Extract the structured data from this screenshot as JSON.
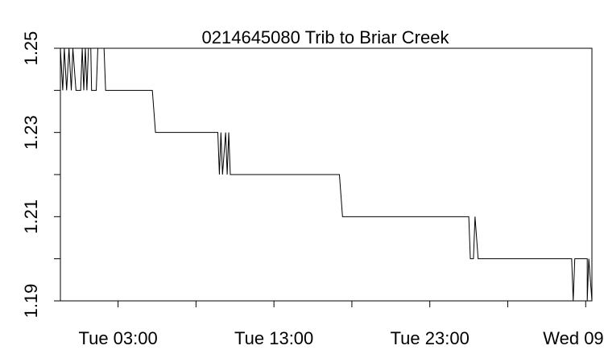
{
  "chart_data": {
    "type": "line",
    "title": "0214645080 Trib to Briar Creek",
    "xlabel": "",
    "ylabel": "",
    "ylim": [
      1.19,
      1.25
    ],
    "yticks": [
      1.19,
      1.2,
      1.21,
      1.22,
      1.23,
      1.24,
      1.25
    ],
    "ytick_labels": [
      "1.19",
      "",
      "1.21",
      "",
      "1.23",
      "",
      "1.25"
    ],
    "xlim": [
      -0.7,
      33.4
    ],
    "x_unit": "hours after Tue 00:00",
    "xticks": [
      3,
      8,
      13,
      18,
      23,
      28,
      33
    ],
    "xtick_labels": [
      "Tue 03:00",
      "",
      "Tue 13:00",
      "",
      "Tue 23:00",
      "",
      "Wed 09:00"
    ],
    "grid": false,
    "series": [
      {
        "color": "#000000",
        "points": [
          [
            -0.7,
            1.25
          ],
          [
            -0.55,
            1.24
          ],
          [
            -0.45,
            1.25
          ],
          [
            -0.3,
            1.24
          ],
          [
            -0.15,
            1.25
          ],
          [
            0.0,
            1.24
          ],
          [
            0.1,
            1.25
          ],
          [
            0.3,
            1.24
          ],
          [
            0.6,
            1.24
          ],
          [
            0.7,
            1.25
          ],
          [
            0.8,
            1.24
          ],
          [
            0.9,
            1.25
          ],
          [
            1.0,
            1.24
          ],
          [
            1.1,
            1.25
          ],
          [
            1.25,
            1.25
          ],
          [
            1.3,
            1.24
          ],
          [
            1.6,
            1.24
          ],
          [
            1.7,
            1.25
          ],
          [
            2.1,
            1.25
          ],
          [
            2.2,
            1.24
          ],
          [
            5.2,
            1.24
          ],
          [
            5.4,
            1.23
          ],
          [
            9.4,
            1.23
          ],
          [
            9.5,
            1.22
          ],
          [
            9.6,
            1.23
          ],
          [
            9.7,
            1.22
          ],
          [
            9.9,
            1.23
          ],
          [
            10.0,
            1.22
          ],
          [
            10.1,
            1.23
          ],
          [
            10.2,
            1.22
          ],
          [
            17.2,
            1.22
          ],
          [
            17.4,
            1.21
          ],
          [
            25.5,
            1.21
          ],
          [
            25.6,
            1.2
          ],
          [
            25.8,
            1.2
          ],
          [
            25.9,
            1.21
          ],
          [
            26.1,
            1.2
          ],
          [
            32.1,
            1.2
          ],
          [
            32.2,
            1.19
          ],
          [
            32.3,
            1.2
          ],
          [
            33.1,
            1.2
          ],
          [
            33.1,
            1.19
          ],
          [
            33.2,
            1.2
          ],
          [
            33.4,
            1.19
          ]
        ]
      }
    ]
  }
}
